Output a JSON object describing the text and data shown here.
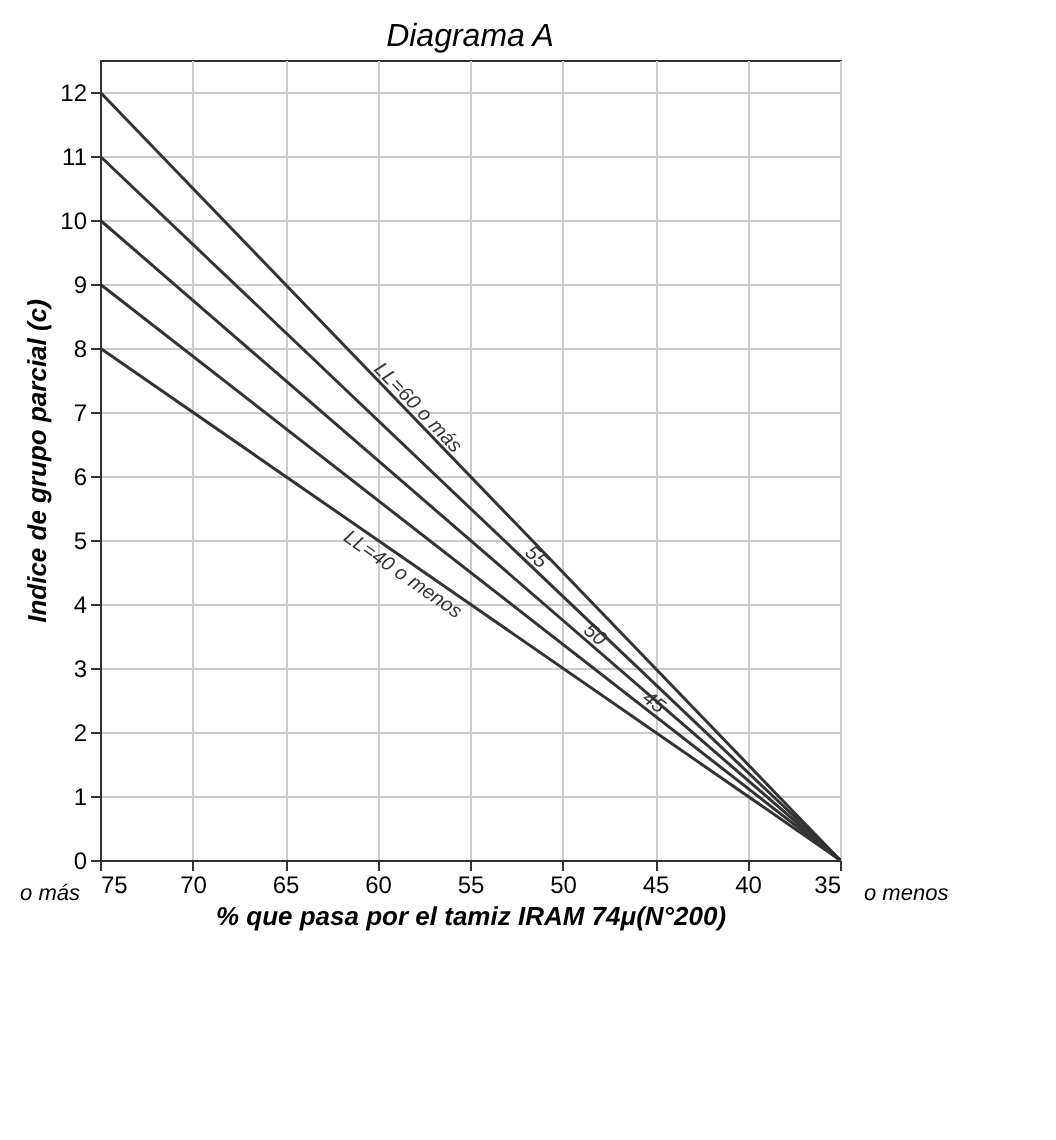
{
  "chart_data": {
    "type": "line",
    "title": "Diagrama A",
    "xlabel": "% que pasa por el tamiz IRAM 74μ(N°200)",
    "ylabel": "Indice de grupo parcial (c)",
    "x": [
      75,
      35
    ],
    "series": [
      {
        "name": "LL=60 o más",
        "color": "#333333",
        "values": [
          12,
          0
        ]
      },
      {
        "name": "55",
        "color": "#333333",
        "values": [
          11,
          0
        ]
      },
      {
        "name": "50",
        "color": "#333333",
        "values": [
          10,
          0
        ]
      },
      {
        "name": "45",
        "color": "#333333",
        "values": [
          9,
          0
        ]
      },
      {
        "name": "LL=40 o menos",
        "color": "#333333",
        "values": [
          8,
          0
        ]
      }
    ],
    "annotations": [
      "o más",
      "o menos"
    ],
    "xlim": [
      75,
      35
    ],
    "xticks": [
      75,
      70,
      65,
      60,
      55,
      50,
      45,
      40,
      35
    ],
    "ylim": [
      0,
      12.5
    ],
    "yticks": [
      0,
      1,
      2,
      3,
      4,
      5,
      6,
      7,
      8,
      9,
      10,
      11,
      12
    ],
    "grid": true,
    "legend": false,
    "marker": "none",
    "line_style": "solid"
  }
}
